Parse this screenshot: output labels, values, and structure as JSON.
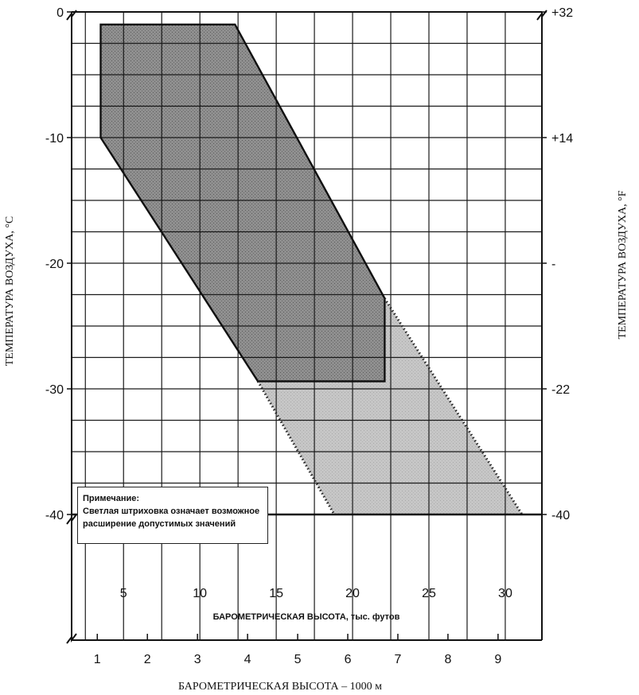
{
  "chart_data": {
    "type": "area",
    "title": "",
    "xlabel_top": "БАРОМЕТРИЧЕСКАЯ ВЫСОТА, тыс. футов",
    "xlabel_bottom": "БАРОМЕТРИЧЕСКАЯ ВЫСОТА – 1000 м",
    "ylabel_left": "ТЕМПЕРАТУРА ВОЗДУХА, °C",
    "ylabel_right": "ТЕМПЕРАТУРА ВОЗДУХА, °F",
    "x_ft_ticks": [
      "5",
      "10",
      "15",
      "20",
      "25",
      "30"
    ],
    "x_m_ticks": [
      "1",
      "2",
      "3",
      "4",
      "5",
      "6",
      "7",
      "8",
      "9"
    ],
    "y_c_ticks": [
      "0",
      "-10",
      "-20",
      "-30",
      "-40"
    ],
    "y_f_ticks": [
      "+32",
      "+14",
      "-",
      "-22",
      "-40"
    ],
    "xlim_ft": [
      1.6,
      32.4
    ],
    "ylim_c": [
      -50,
      0
    ],
    "grid": true,
    "series": [
      {
        "name": "",
        "shade": "dark",
        "x_thousand_ft": [
          3.5,
          12.3,
          22.1,
          22.1,
          13.8,
          3.5
        ],
        "y_celsius": [
          -1,
          -1,
          -22.8,
          -29.4,
          -29.4,
          -10
        ]
      },
      {
        "name": "",
        "shade": "light",
        "x_thousand_ft": [
          22.1,
          31.1,
          18.8,
          13.8,
          22.1
        ],
        "y_celsius": [
          -22.8,
          -40,
          -40,
          -29.4,
          -29.4
        ]
      }
    ],
    "note": {
      "title": "Примечание:",
      "lines": [
        "Светлая штриховка означает возможное",
        "расширение допустимых значений"
      ]
    },
    "colors": {
      "dark": "#8c8c8c",
      "light": "#c4c4c4",
      "grid": "#1a1a1a"
    }
  }
}
